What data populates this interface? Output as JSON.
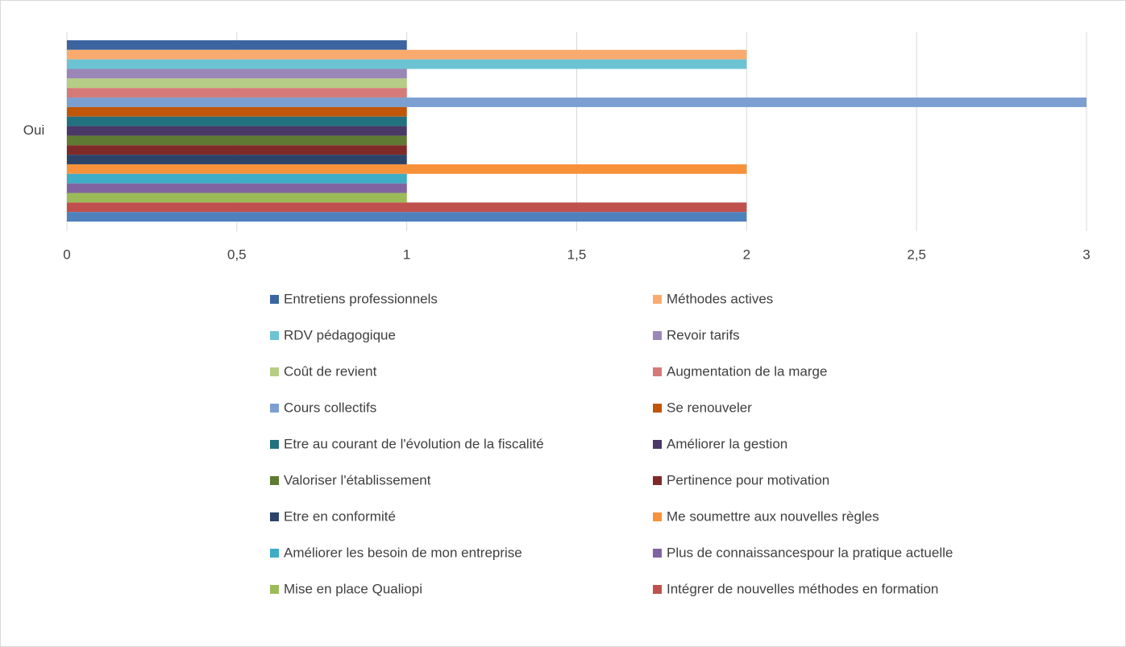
{
  "chart_data": {
    "type": "bar",
    "orientation": "horizontal",
    "categories": [
      "Oui"
    ],
    "series": [
      {
        "name": "Entretiens professionnels",
        "color": "#3b64a0",
        "values": [
          1
        ]
      },
      {
        "name": "Méthodes actives",
        "color": "#f9ab6f",
        "values": [
          2
        ]
      },
      {
        "name": "RDV pédagogique",
        "color": "#6cc3d3",
        "values": [
          2
        ]
      },
      {
        "name": "Revoir tarifs",
        "color": "#9b86b8",
        "values": [
          1
        ]
      },
      {
        "name": "Coût de revient",
        "color": "#b5cd85",
        "values": [
          1
        ]
      },
      {
        "name": "Augmentation de la marge",
        "color": "#d57a78",
        "values": [
          1
        ]
      },
      {
        "name": "Cours collectifs",
        "color": "#7b9fd0",
        "values": [
          3
        ]
      },
      {
        "name": "Se renouveler",
        "color": "#c0560a",
        "values": [
          1
        ]
      },
      {
        "name": "Etre au courant de l'évolution de la fiscalité",
        "color": "#23717f",
        "values": [
          1
        ]
      },
      {
        "name": "Améliorer la gestion",
        "color": "#4a3866",
        "values": [
          1
        ]
      },
      {
        "name": "Valoriser l'établissement",
        "color": "#5e7a33",
        "values": [
          1
        ]
      },
      {
        "name": "Pertinence pour motivation",
        "color": "#7f2a28",
        "values": [
          1
        ]
      },
      {
        "name": "Etre en conformité",
        "color": "#2b4468",
        "values": [
          1
        ]
      },
      {
        "name": "Me soumettre aux nouvelles règles",
        "color": "#f7923b",
        "values": [
          2
        ]
      },
      {
        "name": "Améliorer les besoin de mon entreprise",
        "color": "#3fadc6",
        "values": [
          1
        ]
      },
      {
        "name": "Plus de connaissancespour la pratique actuelle",
        "color": "#8064a2",
        "values": [
          1
        ]
      },
      {
        "name": "Mise en place Qualiopi",
        "color": "#9bbb59",
        "values": [
          1
        ]
      },
      {
        "name": "Intégrer de nouvelles méthodes en formation",
        "color": "#c0504d",
        "values": [
          2
        ]
      },
      {
        "color": "#4f81bd",
        "values": [
          2
        ]
      }
    ],
    "xlim": [
      0,
      3
    ],
    "xticks": [
      0,
      {
        "value": 0.5,
        "label": "0,5"
      },
      1,
      {
        "value": 1.5,
        "label": "1,5"
      },
      2,
      {
        "value": 2.5,
        "label": "2,5"
      },
      3
    ],
    "grid": true
  }
}
